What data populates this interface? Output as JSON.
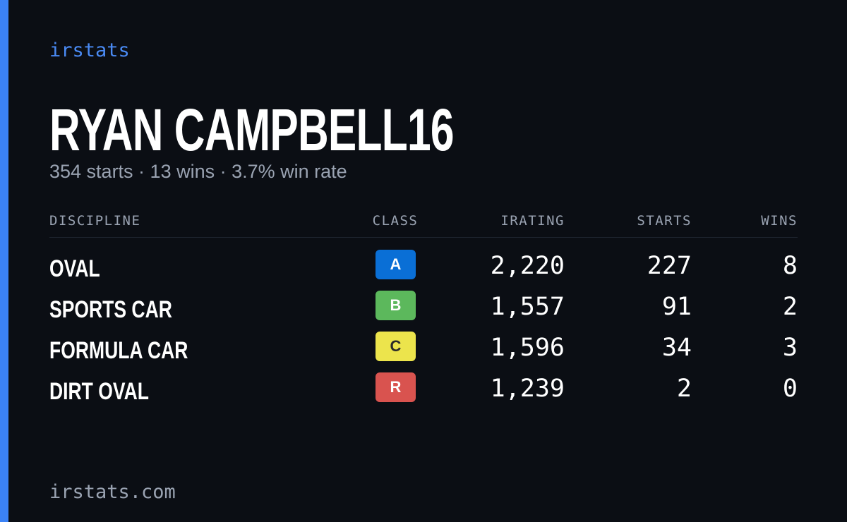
{
  "brand": "irstats",
  "name": "RYAN CAMPBELL16",
  "summary": "354 starts · 13 wins · 3.7% win rate",
  "table": {
    "columns": [
      "DISCIPLINE",
      "CLASS",
      "IRATING",
      "STARTS",
      "WINS"
    ],
    "rows": [
      [
        "OVAL",
        "A",
        "2,220",
        "227",
        "8"
      ],
      [
        "SPORTS CAR",
        "B",
        "1,557",
        "91",
        "2"
      ],
      [
        "FORMULA CAR",
        "C",
        "1,596",
        "34",
        "3"
      ],
      [
        "DIRT OVAL",
        "R",
        "1,239",
        "2",
        "0"
      ]
    ]
  },
  "footer": "irstats.com"
}
